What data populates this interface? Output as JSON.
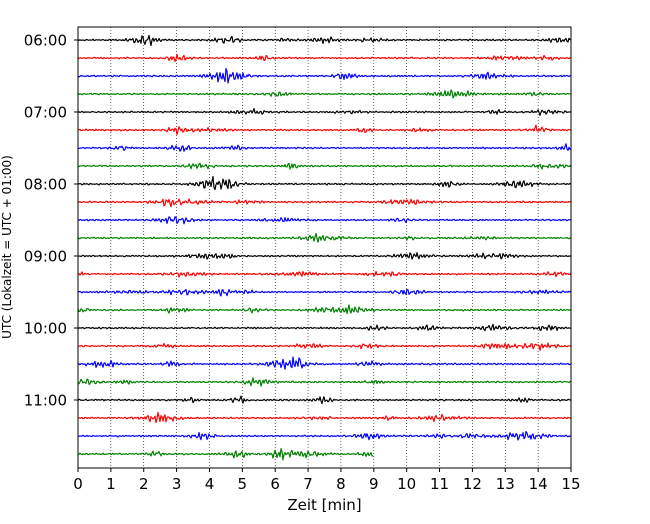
{
  "chart_data": {
    "type": "line",
    "title": "",
    "xlabel": "Zeit  [min]",
    "ylabel": "UTC (Lokalzeit = UTC + 01:00)",
    "xlim": [
      0,
      15
    ],
    "x_ticks": [
      0,
      1,
      2,
      3,
      4,
      5,
      6,
      7,
      8,
      9,
      10,
      11,
      12,
      13,
      14,
      15
    ],
    "x_grid": true,
    "x_grid_style": "dotted",
    "legend": "none",
    "trace_colors": [
      "#000000",
      "#ff0000",
      "#0000ff",
      "#008000"
    ],
    "trace_minutes_per_line": 15,
    "trace_start_utc": "06:00",
    "trace_count": 24,
    "last_trace_end_minute": 9,
    "y_tick_labels": [
      "06:00",
      "07:00",
      "08:00",
      "09:00",
      "10:00",
      "11:00"
    ],
    "y_tick_trace_index": [
      0,
      4,
      8,
      12,
      16,
      20
    ]
  }
}
